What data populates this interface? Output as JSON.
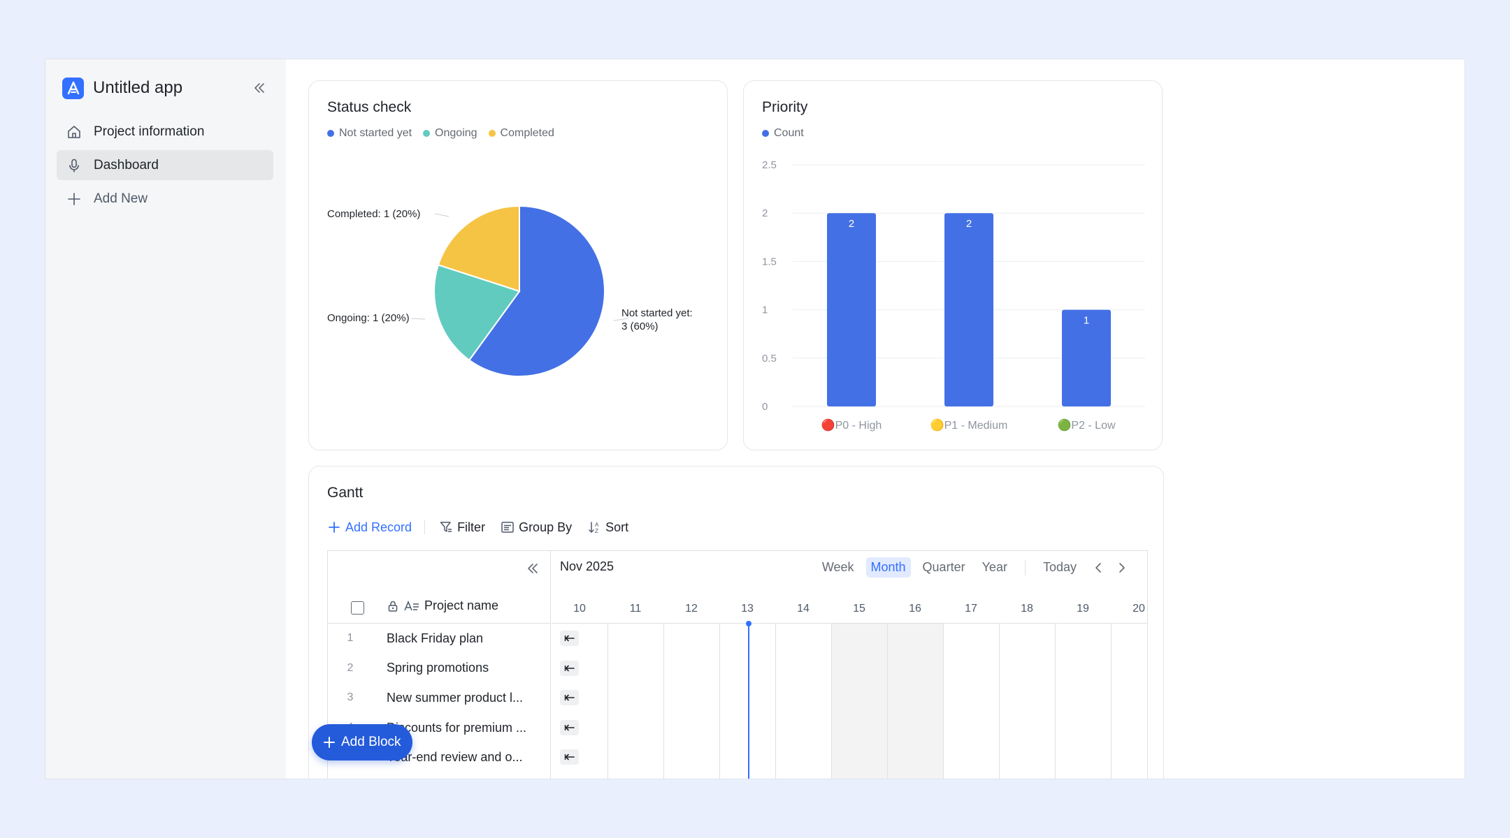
{
  "app": {
    "title": "Untitled app",
    "accent_color": "#3370ff"
  },
  "sidebar": {
    "items": [
      {
        "label": "Project information",
        "icon": "home-icon",
        "active": false
      },
      {
        "label": "Dashboard",
        "icon": "microphone-icon",
        "active": true
      },
      {
        "label": "Add New",
        "icon": "plus-icon",
        "active": false
      }
    ]
  },
  "status_check": {
    "title": "Status check",
    "legend": [
      {
        "label": "Not started yet",
        "color": "#4370e5"
      },
      {
        "label": "Ongoing",
        "color": "#62cbbf"
      },
      {
        "label": "Completed",
        "color": "#f6c445"
      }
    ],
    "label_not_started_1": "Not started yet:",
    "label_not_started_2": "3 (60%)",
    "label_ongoing": "Ongoing: 1 (20%)",
    "label_completed": "Completed: 1 (20%)"
  },
  "priority": {
    "title": "Priority",
    "legend": [
      {
        "label": "Count",
        "color": "#4370e5"
      }
    ]
  },
  "chart_data": [
    {
      "type": "pie",
      "title": "Status check",
      "categories": [
        "Not started yet",
        "Ongoing",
        "Completed"
      ],
      "values": [
        3,
        1,
        1
      ],
      "percentages": [
        60,
        20,
        20
      ],
      "colors": [
        "#4370e5",
        "#62cbbf",
        "#f6c445"
      ],
      "legend_position": "top-left"
    },
    {
      "type": "bar",
      "title": "Priority",
      "categories": [
        "🔴P0 - High",
        "🟡P1 - Medium",
        "🟢P2 - Low"
      ],
      "series": [
        {
          "name": "Count",
          "values": [
            2,
            2,
            1
          ],
          "color": "#4370e5"
        }
      ],
      "yticks": [
        "0",
        "0.5",
        "1",
        "1.5",
        "2",
        "2.5"
      ],
      "ylim": [
        0,
        2.5
      ],
      "grid": true,
      "legend_position": "top-left"
    }
  ],
  "gantt": {
    "title": "Gantt",
    "toolbar": {
      "add_record": "Add Record",
      "filter": "Filter",
      "group_by": "Group By",
      "sort": "Sort"
    },
    "month": "Nov 2025",
    "views": [
      "Week",
      "Month",
      "Quarter",
      "Year"
    ],
    "active_view": "Month",
    "today": "Today",
    "field_name": "Project name",
    "days": [
      "10",
      "11",
      "12",
      "13",
      "14",
      "15",
      "16",
      "17",
      "18",
      "19",
      "20"
    ],
    "rows": [
      {
        "index": "1",
        "name": "Black Friday plan"
      },
      {
        "index": "2",
        "name": "Spring promotions"
      },
      {
        "index": "3",
        "name": "New summer product l..."
      },
      {
        "index": "4",
        "name": "Discounts for premium ..."
      },
      {
        "index": "5",
        "name": "Year-end review and o..."
      }
    ]
  },
  "add_block": "Add Block"
}
